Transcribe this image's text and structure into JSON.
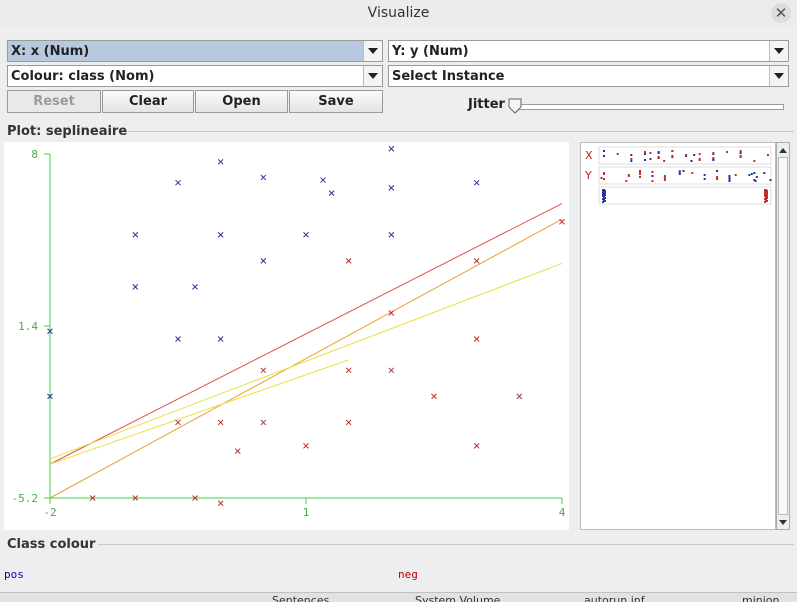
{
  "window": {
    "title": "Visualize"
  },
  "controls": {
    "x_axis": "X: x (Num)",
    "y_axis": "Y: y (Num)",
    "colour": "Colour: class (Nom)",
    "instance": "Select Instance",
    "reset": "Reset",
    "clear": "Clear",
    "open": "Open",
    "save": "Save",
    "jitter": "Jitter",
    "jitter_value": 0
  },
  "plot": {
    "label": "Plot: seplineaire"
  },
  "summary": {
    "x_label": "X",
    "y_label": "Y"
  },
  "class_colour": {
    "label": "Class colour",
    "classes": [
      {
        "name": "pos",
        "color": "#0000c0"
      },
      {
        "name": "neg",
        "color": "#c00000"
      }
    ]
  },
  "bottom_strip": [
    "Sentences",
    "System Volume",
    "autorun.inf",
    "minion"
  ],
  "chart_data": {
    "type": "scatter",
    "xlim": [
      -2,
      4
    ],
    "ylim": [
      -5.2,
      8
    ],
    "x_ticks": [
      "-2",
      "1",
      "4"
    ],
    "y_ticks": [
      "8",
      "1.4",
      "-5.2"
    ],
    "series": [
      {
        "name": "pos",
        "color": "#3030a0",
        "points": [
          [
            -2,
            1.2
          ],
          [
            -2,
            -1.3
          ],
          [
            -1,
            4.9
          ],
          [
            -1,
            2.9
          ],
          [
            -0.5,
            6.9
          ],
          [
            -0.5,
            0.9
          ],
          [
            -0.3,
            2.9
          ],
          [
            0,
            7.7
          ],
          [
            0,
            4.9
          ],
          [
            0,
            0.9
          ],
          [
            0.5,
            7.1
          ],
          [
            0.5,
            3.9
          ],
          [
            1,
            4.9
          ],
          [
            1.2,
            7.0
          ],
          [
            1.3,
            6.5
          ],
          [
            2,
            8.2
          ],
          [
            2,
            6.7
          ],
          [
            2,
            4.9
          ],
          [
            3,
            6.9
          ]
        ]
      },
      {
        "name": "neg",
        "color": "#c03030",
        "points": [
          [
            -1.5,
            -5.2
          ],
          [
            -1,
            -5.2
          ],
          [
            -0.3,
            -5.2
          ],
          [
            0,
            -5.4
          ],
          [
            -0.5,
            -2.3
          ],
          [
            0,
            -2.3
          ],
          [
            0.5,
            -2.3
          ],
          [
            0.5,
            -0.3
          ],
          [
            0.2,
            -3.4
          ],
          [
            1,
            -3.2
          ],
          [
            1.5,
            -0.3
          ],
          [
            1.5,
            -2.3
          ],
          [
            1.5,
            3.9
          ],
          [
            2,
            1.9
          ],
          [
            2,
            -0.3
          ],
          [
            2.5,
            -1.3
          ],
          [
            3,
            3.9
          ],
          [
            3,
            0.9
          ],
          [
            3,
            -3.2
          ],
          [
            3.5,
            -1.3
          ],
          [
            4,
            5.4
          ]
        ]
      }
    ],
    "lines": [
      {
        "color": "#e05050",
        "from": [
          -2,
          -3.9
        ],
        "to": [
          4,
          6.1
        ]
      },
      {
        "color": "#e8a030",
        "from": [
          -2,
          -5.2
        ],
        "to": [
          4,
          5.5
        ]
      },
      {
        "color": "#e8e040",
        "from": [
          -2,
          -3.7
        ],
        "to": [
          4,
          3.8
        ]
      },
      {
        "color": "#e8e040",
        "from": [
          -2,
          -3.9
        ],
        "to": [
          1.5,
          0.1
        ]
      }
    ]
  }
}
